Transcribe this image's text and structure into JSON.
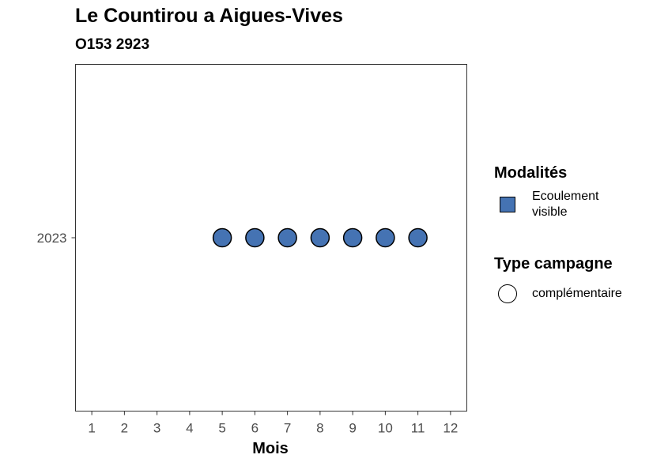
{
  "title": "Le Countirou a Aigues-Vives",
  "subtitle": "O153 2923",
  "colors": {
    "point_fill": "#4573B3",
    "point_stroke": "#000000",
    "panel_border": "#333333"
  },
  "legend": {
    "modalites_title": "Modalités",
    "modalites_items": [
      {
        "label": "Ecoulement visible",
        "color": "#4573B3",
        "shape": "square"
      }
    ],
    "type_title": "Type campagne",
    "type_items": [
      {
        "label": "complémentaire",
        "shape": "circle"
      }
    ]
  },
  "chart_data": {
    "type": "scatter",
    "xlabel": "Mois",
    "ylabel": "",
    "x_ticks": [
      1,
      2,
      3,
      4,
      5,
      6,
      7,
      8,
      9,
      10,
      11,
      12
    ],
    "y_categories": [
      "2023"
    ],
    "xlim": [
      0.5,
      12.5
    ],
    "grid": false,
    "legend_position": "right",
    "points": [
      {
        "x": 5,
        "y": "2023",
        "modalite": "Ecoulement visible",
        "type_campagne": "complémentaire"
      },
      {
        "x": 6,
        "y": "2023",
        "modalite": "Ecoulement visible",
        "type_campagne": "complémentaire"
      },
      {
        "x": 7,
        "y": "2023",
        "modalite": "Ecoulement visible",
        "type_campagne": "complémentaire"
      },
      {
        "x": 8,
        "y": "2023",
        "modalite": "Ecoulement visible",
        "type_campagne": "complémentaire"
      },
      {
        "x": 9,
        "y": "2023",
        "modalite": "Ecoulement visible",
        "type_campagne": "complémentaire"
      },
      {
        "x": 10,
        "y": "2023",
        "modalite": "Ecoulement visible",
        "type_campagne": "complémentaire"
      },
      {
        "x": 11,
        "y": "2023",
        "modalite": "Ecoulement visible",
        "type_campagne": "complémentaire"
      }
    ]
  }
}
